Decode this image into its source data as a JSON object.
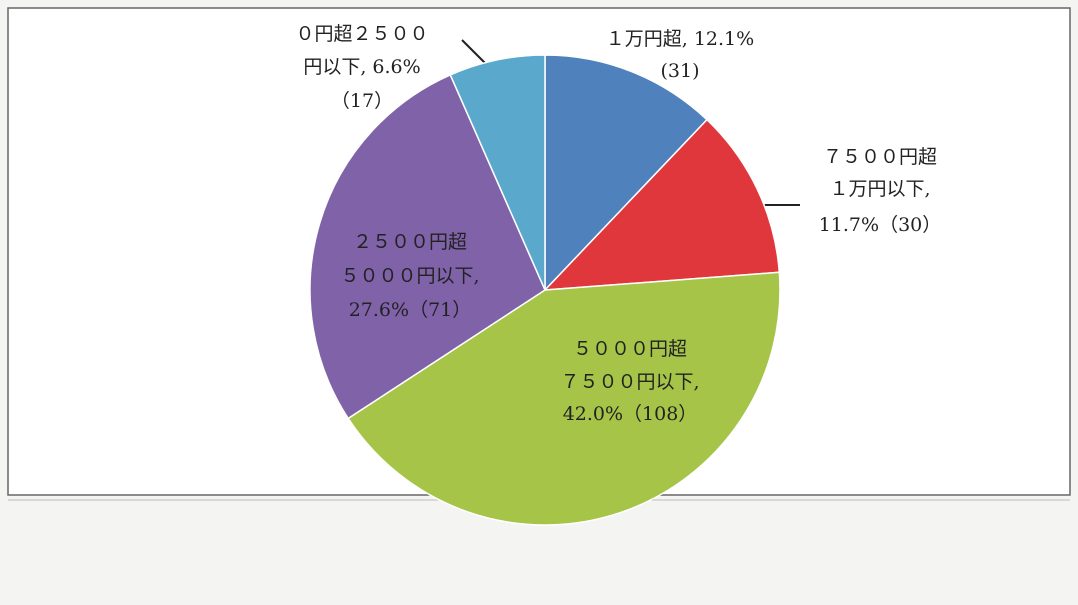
{
  "chart_data": {
    "type": "pie",
    "labels": [
      [
        "１万円超, 12.1%",
        "(31)"
      ],
      [
        "７５００円超",
        "１万円以下,",
        "11.7%（30）"
      ],
      [
        "５０００円超",
        "７５００円以下,",
        "42.0%（108）"
      ],
      [
        "２５００円超",
        "５０００円以下,",
        "27.6%（71）"
      ],
      [
        "０円超２５００",
        "円以下, 6.6%",
        "（17）"
      ]
    ],
    "values": [
      12.1,
      11.7,
      42.0,
      27.6,
      6.6
    ],
    "colors": [
      "#4f81bd",
      "#e0373c",
      "#a6c448",
      "#7f62a8",
      "#5aa9cc"
    ]
  }
}
